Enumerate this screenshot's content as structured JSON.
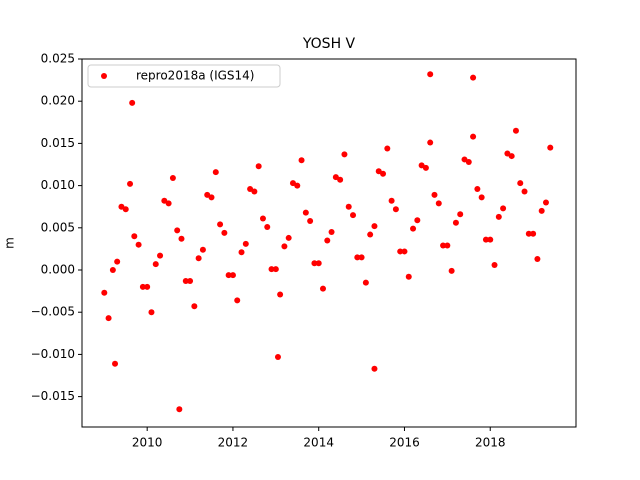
{
  "chart_data": {
    "type": "scatter",
    "title": "YOSH V",
    "y_label": "m",
    "xlim": [
      2008.48,
      2020.0
    ],
    "ylim": [
      -0.0186,
      0.025
    ],
    "xticks": [
      2010,
      2012,
      2014,
      2016,
      2018
    ],
    "yticks": [
      {
        "value": -0.015,
        "label": "−0.015"
      },
      {
        "value": -0.01,
        "label": "−0.010"
      },
      {
        "value": -0.005,
        "label": "−0.005"
      },
      {
        "value": 0,
        "label": "0.000"
      },
      {
        "value": 0.005,
        "label": "0.005"
      },
      {
        "value": 0.01,
        "label": "0.010"
      },
      {
        "value": 0.015,
        "label": "0.015"
      },
      {
        "value": 0.02,
        "label": "0.020"
      },
      {
        "value": 0.025,
        "label": "0.025"
      }
    ],
    "legend": "upper left",
    "series": [
      {
        "name": "repro2018a (IGS14)",
        "color": "#ff0000",
        "x": [
          2009.0,
          2009.1,
          2009.2,
          2009.3,
          2009.4,
          2009.5,
          2009.6,
          2009.7,
          2009.8,
          2009.9,
          2010.0,
          2010.1,
          2010.2,
          2010.3,
          2010.4,
          2010.5,
          2010.6,
          2010.7,
          2010.8,
          2010.9,
          2011.0,
          2011.1,
          2011.2,
          2011.3,
          2011.4,
          2011.5,
          2011.6,
          2011.7,
          2011.8,
          2011.9,
          2012.0,
          2012.1,
          2012.2,
          2012.3,
          2012.4,
          2012.5,
          2012.6,
          2012.7,
          2012.8,
          2012.9,
          2013.0,
          2013.1,
          2013.2,
          2013.3,
          2013.4,
          2013.5,
          2013.6,
          2013.7,
          2013.8,
          2013.9,
          2014.0,
          2014.1,
          2014.2,
          2014.3,
          2014.4,
          2014.5,
          2014.6,
          2014.7,
          2014.8,
          2014.9,
          2015.0,
          2015.1,
          2015.2,
          2015.3,
          2015.4,
          2015.5,
          2015.6,
          2015.7,
          2015.8,
          2015.9,
          2016.0,
          2016.1,
          2016.2,
          2016.3,
          2016.4,
          2016.5,
          2016.6,
          2016.7,
          2016.8,
          2016.9,
          2017.0,
          2017.1,
          2017.2,
          2017.3,
          2017.4,
          2017.5,
          2017.6,
          2017.7,
          2017.8,
          2017.9,
          2018.0,
          2018.1,
          2018.2,
          2018.3,
          2018.4,
          2018.5,
          2018.6,
          2018.7,
          2018.8,
          2018.9,
          2019.0,
          2019.1,
          2019.2,
          2019.3,
          2019.4,
          2010.75,
          2015.3,
          2013.05,
          2009.25,
          2016.6,
          2009.65,
          2017.6
        ],
        "values": [
          -0.0027,
          -0.0057,
          0.0,
          0.001,
          0.0075,
          0.0072,
          0.0102,
          0.004,
          0.003,
          -0.002,
          -0.002,
          -0.005,
          0.0007,
          0.0017,
          0.0082,
          0.0079,
          0.0109,
          0.0047,
          0.0037,
          -0.0013,
          -0.0013,
          -0.0043,
          0.0014,
          0.0024,
          0.0089,
          0.0086,
          0.0116,
          0.0054,
          0.0044,
          -0.0006,
          -0.0006,
          -0.0036,
          0.0021,
          0.0031,
          0.0096,
          0.0093,
          0.0123,
          0.0061,
          0.0051,
          0.0001,
          0.0001,
          -0.0029,
          0.0028,
          0.0038,
          0.0103,
          0.01,
          0.013,
          0.0068,
          0.0058,
          0.0008,
          0.0008,
          -0.0022,
          0.0035,
          0.0045,
          0.011,
          0.0107,
          0.0137,
          0.0075,
          0.0065,
          0.0015,
          0.0015,
          -0.0015,
          0.0042,
          0.0052,
          0.0117,
          0.0114,
          0.0144,
          0.0082,
          0.0072,
          0.0022,
          0.0022,
          -0.0008,
          0.0049,
          0.0059,
          0.0124,
          0.0121,
          0.0151,
          0.0089,
          0.0079,
          0.0029,
          0.0029,
          -0.0001,
          0.0056,
          0.0066,
          0.0131,
          0.0128,
          0.0158,
          0.0096,
          0.0086,
          0.0036,
          0.0036,
          0.0006,
          0.0063,
          0.0073,
          0.0138,
          0.0135,
          0.0165,
          0.0103,
          0.0093,
          0.0043,
          0.0043,
          0.0013,
          0.007,
          0.008,
          0.0145,
          -0.0165,
          -0.0117,
          -0.0103,
          -0.0111,
          0.0232,
          0.0198,
          0.0228
        ]
      }
    ]
  }
}
